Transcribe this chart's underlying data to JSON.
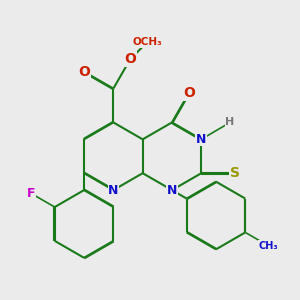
{
  "bg_color": "#ebebeb",
  "bond_color": "#1a7a1a",
  "bond_width": 1.5,
  "atom_colors": {
    "N": "#1111cc",
    "O": "#cc2200",
    "S": "#999900",
    "F": "#cc00cc",
    "H": "#777777"
  },
  "font_size": 9
}
